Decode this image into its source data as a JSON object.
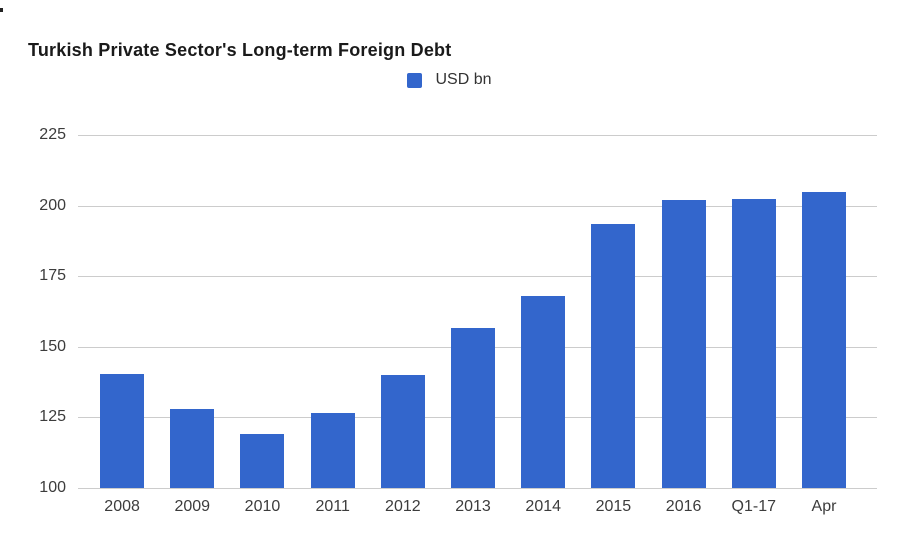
{
  "title": "Turkish Private Sector's Long-term Foreign Debt",
  "legend": {
    "label": "USD bn",
    "swatch_color": "#3366CC"
  },
  "chart_data": {
    "type": "bar",
    "title": "Turkish Private Sector's Long-term Foreign Debt",
    "series_name": "USD bn",
    "categories": [
      "2008",
      "2009",
      "2010",
      "2011",
      "2012",
      "2013",
      "2014",
      "2015",
      "2016",
      "Q1-17",
      "Apr"
    ],
    "values": [
      140.5,
      128,
      119,
      126.5,
      140,
      156.5,
      168,
      193.5,
      202,
      202.5,
      205
    ],
    "xlabel": "",
    "ylabel": "",
    "ylim": [
      100,
      225
    ],
    "yticks": [
      100,
      125,
      150,
      175,
      200,
      225
    ],
    "grid": true,
    "legend_position": "top-center",
    "bar_color": "#3366CC",
    "gridline_color": "#cccccc"
  }
}
